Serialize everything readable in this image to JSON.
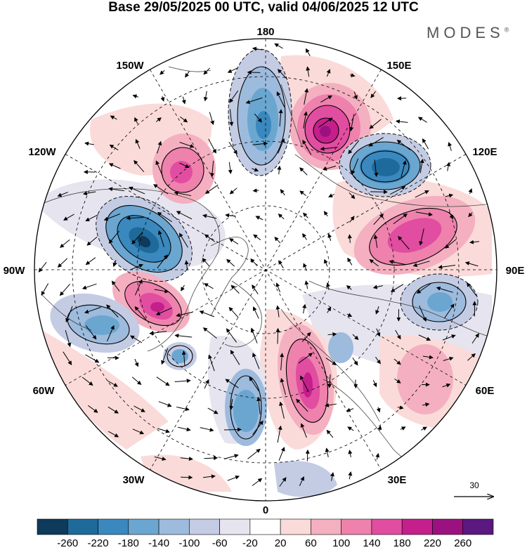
{
  "title": "Base 29/05/2025 00 UTC, valid 04/06/2025 12 UTC",
  "brand": "MODES",
  "brand_mark": "®",
  "longitude_labels": {
    "top": "180",
    "top_left": "150W",
    "top_right": "150E",
    "upper_left": "120W",
    "upper_right": "120E",
    "left": "90W",
    "right": "90E",
    "lower_left": "60W",
    "lower_right": "60E",
    "bottom_left": "30W",
    "bottom_right": "30E",
    "bottom": "0"
  },
  "reference_vector": {
    "label": "30"
  },
  "colorbar": {
    "colors": [
      "#0e3a5b",
      "#1e6a9a",
      "#3a88bd",
      "#6aa6d0",
      "#9dbbdd",
      "#c4cce4",
      "#e6e4ef",
      "#ffffff",
      "#fadbd9",
      "#f4b0c0",
      "#ee82ad",
      "#e14da0",
      "#c51f8c",
      "#9c1180",
      "#5a1880"
    ],
    "labels": [
      "-260",
      "-220",
      "-180",
      "-140",
      "-100",
      "-60",
      "-20",
      "20",
      "60",
      "100",
      "140",
      "180",
      "220",
      "260"
    ]
  },
  "anomaly_centers": [
    {
      "sign": "neg",
      "level": 4
    },
    {
      "sign": "pos",
      "level": 5
    },
    {
      "sign": "neg",
      "level": 5
    },
    {
      "sign": "pos",
      "level": 4
    },
    {
      "sign": "pos",
      "level": 4
    },
    {
      "sign": "neg",
      "level": 5
    },
    {
      "sign": "pos",
      "level": 5
    },
    {
      "sign": "neg",
      "level": 4
    },
    {
      "sign": "neg",
      "level": 2
    },
    {
      "sign": "neg",
      "level": 3
    },
    {
      "sign": "pos",
      "level": 5
    },
    {
      "sign": "neg",
      "level": 3
    },
    {
      "sign": "pos",
      "level": 2
    },
    {
      "sign": "neg",
      "level": 2
    },
    {
      "sign": "pos",
      "level": 2
    }
  ]
}
